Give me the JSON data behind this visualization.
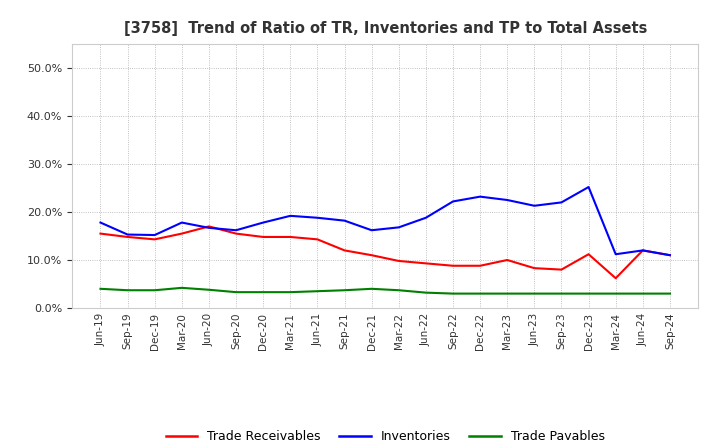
{
  "title": "[3758]  Trend of Ratio of TR, Inventories and TP to Total Assets",
  "x_labels": [
    "Jun-19",
    "Sep-19",
    "Dec-19",
    "Mar-20",
    "Jun-20",
    "Sep-20",
    "Dec-20",
    "Mar-21",
    "Jun-21",
    "Sep-21",
    "Dec-21",
    "Mar-22",
    "Jun-22",
    "Sep-22",
    "Dec-22",
    "Mar-23",
    "Jun-23",
    "Sep-23",
    "Dec-23",
    "Mar-24",
    "Jun-24",
    "Sep-24"
  ],
  "trade_receivables": [
    0.155,
    0.148,
    0.143,
    0.155,
    0.17,
    0.155,
    0.148,
    0.148,
    0.143,
    0.12,
    0.11,
    0.098,
    0.093,
    0.088,
    0.088,
    0.1,
    0.083,
    0.08,
    0.112,
    0.062,
    0.12,
    0.11
  ],
  "inventories": [
    0.178,
    0.153,
    0.152,
    0.178,
    0.167,
    0.162,
    0.178,
    0.192,
    0.188,
    0.182,
    0.162,
    0.168,
    0.188,
    0.222,
    0.232,
    0.225,
    0.213,
    0.22,
    0.252,
    0.112,
    0.12,
    0.11
  ],
  "trade_payables": [
    0.04,
    0.037,
    0.037,
    0.042,
    0.038,
    0.033,
    0.033,
    0.033,
    0.035,
    0.037,
    0.04,
    0.037,
    0.032,
    0.03,
    0.03,
    0.03,
    0.03,
    0.03,
    0.03,
    0.03,
    0.03,
    0.03
  ],
  "tr_color": "#ff0000",
  "inv_color": "#0000ff",
  "tp_color": "#008000",
  "ylim": [
    0.0,
    0.55
  ],
  "yticks": [
    0.0,
    0.1,
    0.2,
    0.3,
    0.4,
    0.5
  ],
  "background_color": "#ffffff",
  "grid_color": "#999999",
  "legend_labels": [
    "Trade Receivables",
    "Inventories",
    "Trade Payables"
  ]
}
